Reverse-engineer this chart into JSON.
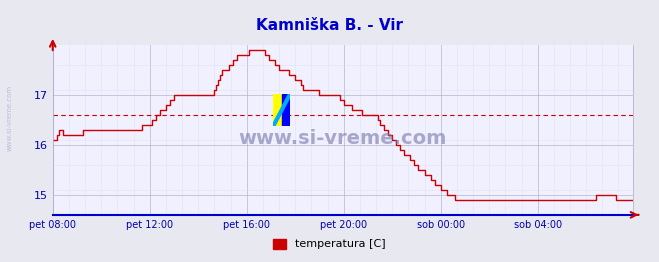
{
  "title": "Kamniška B. - Vir",
  "title_color": "#0000cc",
  "bg_color": "#e8e8f0",
  "plot_bg_color": "#f0f0ff",
  "grid_color_major": "#aaaacc",
  "grid_color_minor": "#ddddee",
  "line_color": "#cc0000",
  "avg_line_color": "#cc0000",
  "avg_line_value": 16.6,
  "yticks": [
    15,
    16,
    17
  ],
  "ymin": 14.6,
  "ymax": 18.0,
  "xtick_labels": [
    "pet 08:00",
    "pet 12:00",
    "pet 16:00",
    "pet 20:00",
    "sob 00:00",
    "sob 04:00"
  ],
  "xtick_positions": [
    0,
    48,
    96,
    144,
    192,
    240
  ],
  "total_points": 288,
  "watermark_text": "www.si-vreme.com",
  "watermark_color": "#7777aa",
  "left_label": "www.si-vreme.com",
  "legend_label": "temperatura [C]",
  "legend_color": "#cc0000",
  "temperature_data": [
    16.1,
    16.1,
    16.2,
    16.3,
    16.3,
    16.2,
    16.2,
    16.2,
    16.2,
    16.2,
    16.2,
    16.2,
    16.2,
    16.2,
    16.2,
    16.3,
    16.3,
    16.3,
    16.3,
    16.3,
    16.3,
    16.3,
    16.3,
    16.3,
    16.3,
    16.3,
    16.3,
    16.3,
    16.3,
    16.3,
    16.3,
    16.3,
    16.3,
    16.3,
    16.3,
    16.3,
    16.3,
    16.3,
    16.3,
    16.3,
    16.3,
    16.3,
    16.3,
    16.3,
    16.4,
    16.4,
    16.4,
    16.4,
    16.4,
    16.5,
    16.5,
    16.6,
    16.6,
    16.7,
    16.7,
    16.7,
    16.8,
    16.8,
    16.9,
    16.9,
    17.0,
    17.0,
    17.0,
    17.0,
    17.0,
    17.0,
    17.0,
    17.0,
    17.0,
    17.0,
    17.0,
    17.0,
    17.0,
    17.0,
    17.0,
    17.0,
    17.0,
    17.0,
    17.0,
    17.0,
    17.1,
    17.2,
    17.3,
    17.4,
    17.5,
    17.5,
    17.5,
    17.6,
    17.6,
    17.7,
    17.7,
    17.8,
    17.8,
    17.8,
    17.8,
    17.8,
    17.8,
    17.9,
    17.9,
    17.9,
    17.9,
    17.9,
    17.9,
    17.9,
    17.9,
    17.8,
    17.8,
    17.7,
    17.7,
    17.7,
    17.6,
    17.6,
    17.5,
    17.5,
    17.5,
    17.5,
    17.5,
    17.4,
    17.4,
    17.4,
    17.3,
    17.3,
    17.3,
    17.2,
    17.1,
    17.1,
    17.1,
    17.1,
    17.1,
    17.1,
    17.1,
    17.1,
    17.0,
    17.0,
    17.0,
    17.0,
    17.0,
    17.0,
    17.0,
    17.0,
    17.0,
    17.0,
    16.9,
    16.9,
    16.8,
    16.8,
    16.8,
    16.8,
    16.7,
    16.7,
    16.7,
    16.7,
    16.7,
    16.6,
    16.6,
    16.6,
    16.6,
    16.6,
    16.6,
    16.6,
    16.6,
    16.5,
    16.4,
    16.4,
    16.3,
    16.3,
    16.2,
    16.2,
    16.1,
    16.1,
    16.0,
    16.0,
    15.9,
    15.9,
    15.8,
    15.8,
    15.8,
    15.7,
    15.7,
    15.6,
    15.6,
    15.5,
    15.5,
    15.5,
    15.4,
    15.4,
    15.4,
    15.3,
    15.3,
    15.2,
    15.2,
    15.2,
    15.1,
    15.1,
    15.1,
    15.0,
    15.0,
    15.0,
    15.0,
    14.9,
    14.9,
    14.9,
    14.9,
    14.9,
    14.9,
    14.9,
    14.9,
    14.9,
    14.9,
    14.9,
    14.9,
    14.9,
    14.9,
    14.9,
    14.9,
    14.9,
    14.9,
    14.9,
    14.9,
    14.9,
    14.9,
    14.9,
    14.9,
    14.9,
    14.9,
    14.9,
    14.9,
    14.9,
    14.9,
    14.9,
    14.9,
    14.9,
    14.9,
    14.9,
    14.9,
    14.9,
    14.9,
    14.9,
    14.9,
    14.9,
    14.9,
    14.9,
    14.9,
    14.9,
    14.9,
    14.9,
    14.9,
    14.9,
    14.9,
    14.9,
    14.9,
    14.9,
    14.9,
    14.9,
    14.9,
    14.9,
    14.9,
    14.9,
    14.9,
    14.9,
    14.9,
    14.9,
    14.9,
    14.9,
    14.9,
    14.9,
    14.9,
    14.9,
    14.9,
    15.0,
    15.0,
    15.0,
    15.0,
    15.0,
    15.0,
    15.0,
    15.0,
    15.0,
    15.0,
    14.9,
    14.9,
    14.9,
    14.9,
    14.9,
    14.9,
    14.9,
    14.9,
    14.9
  ]
}
